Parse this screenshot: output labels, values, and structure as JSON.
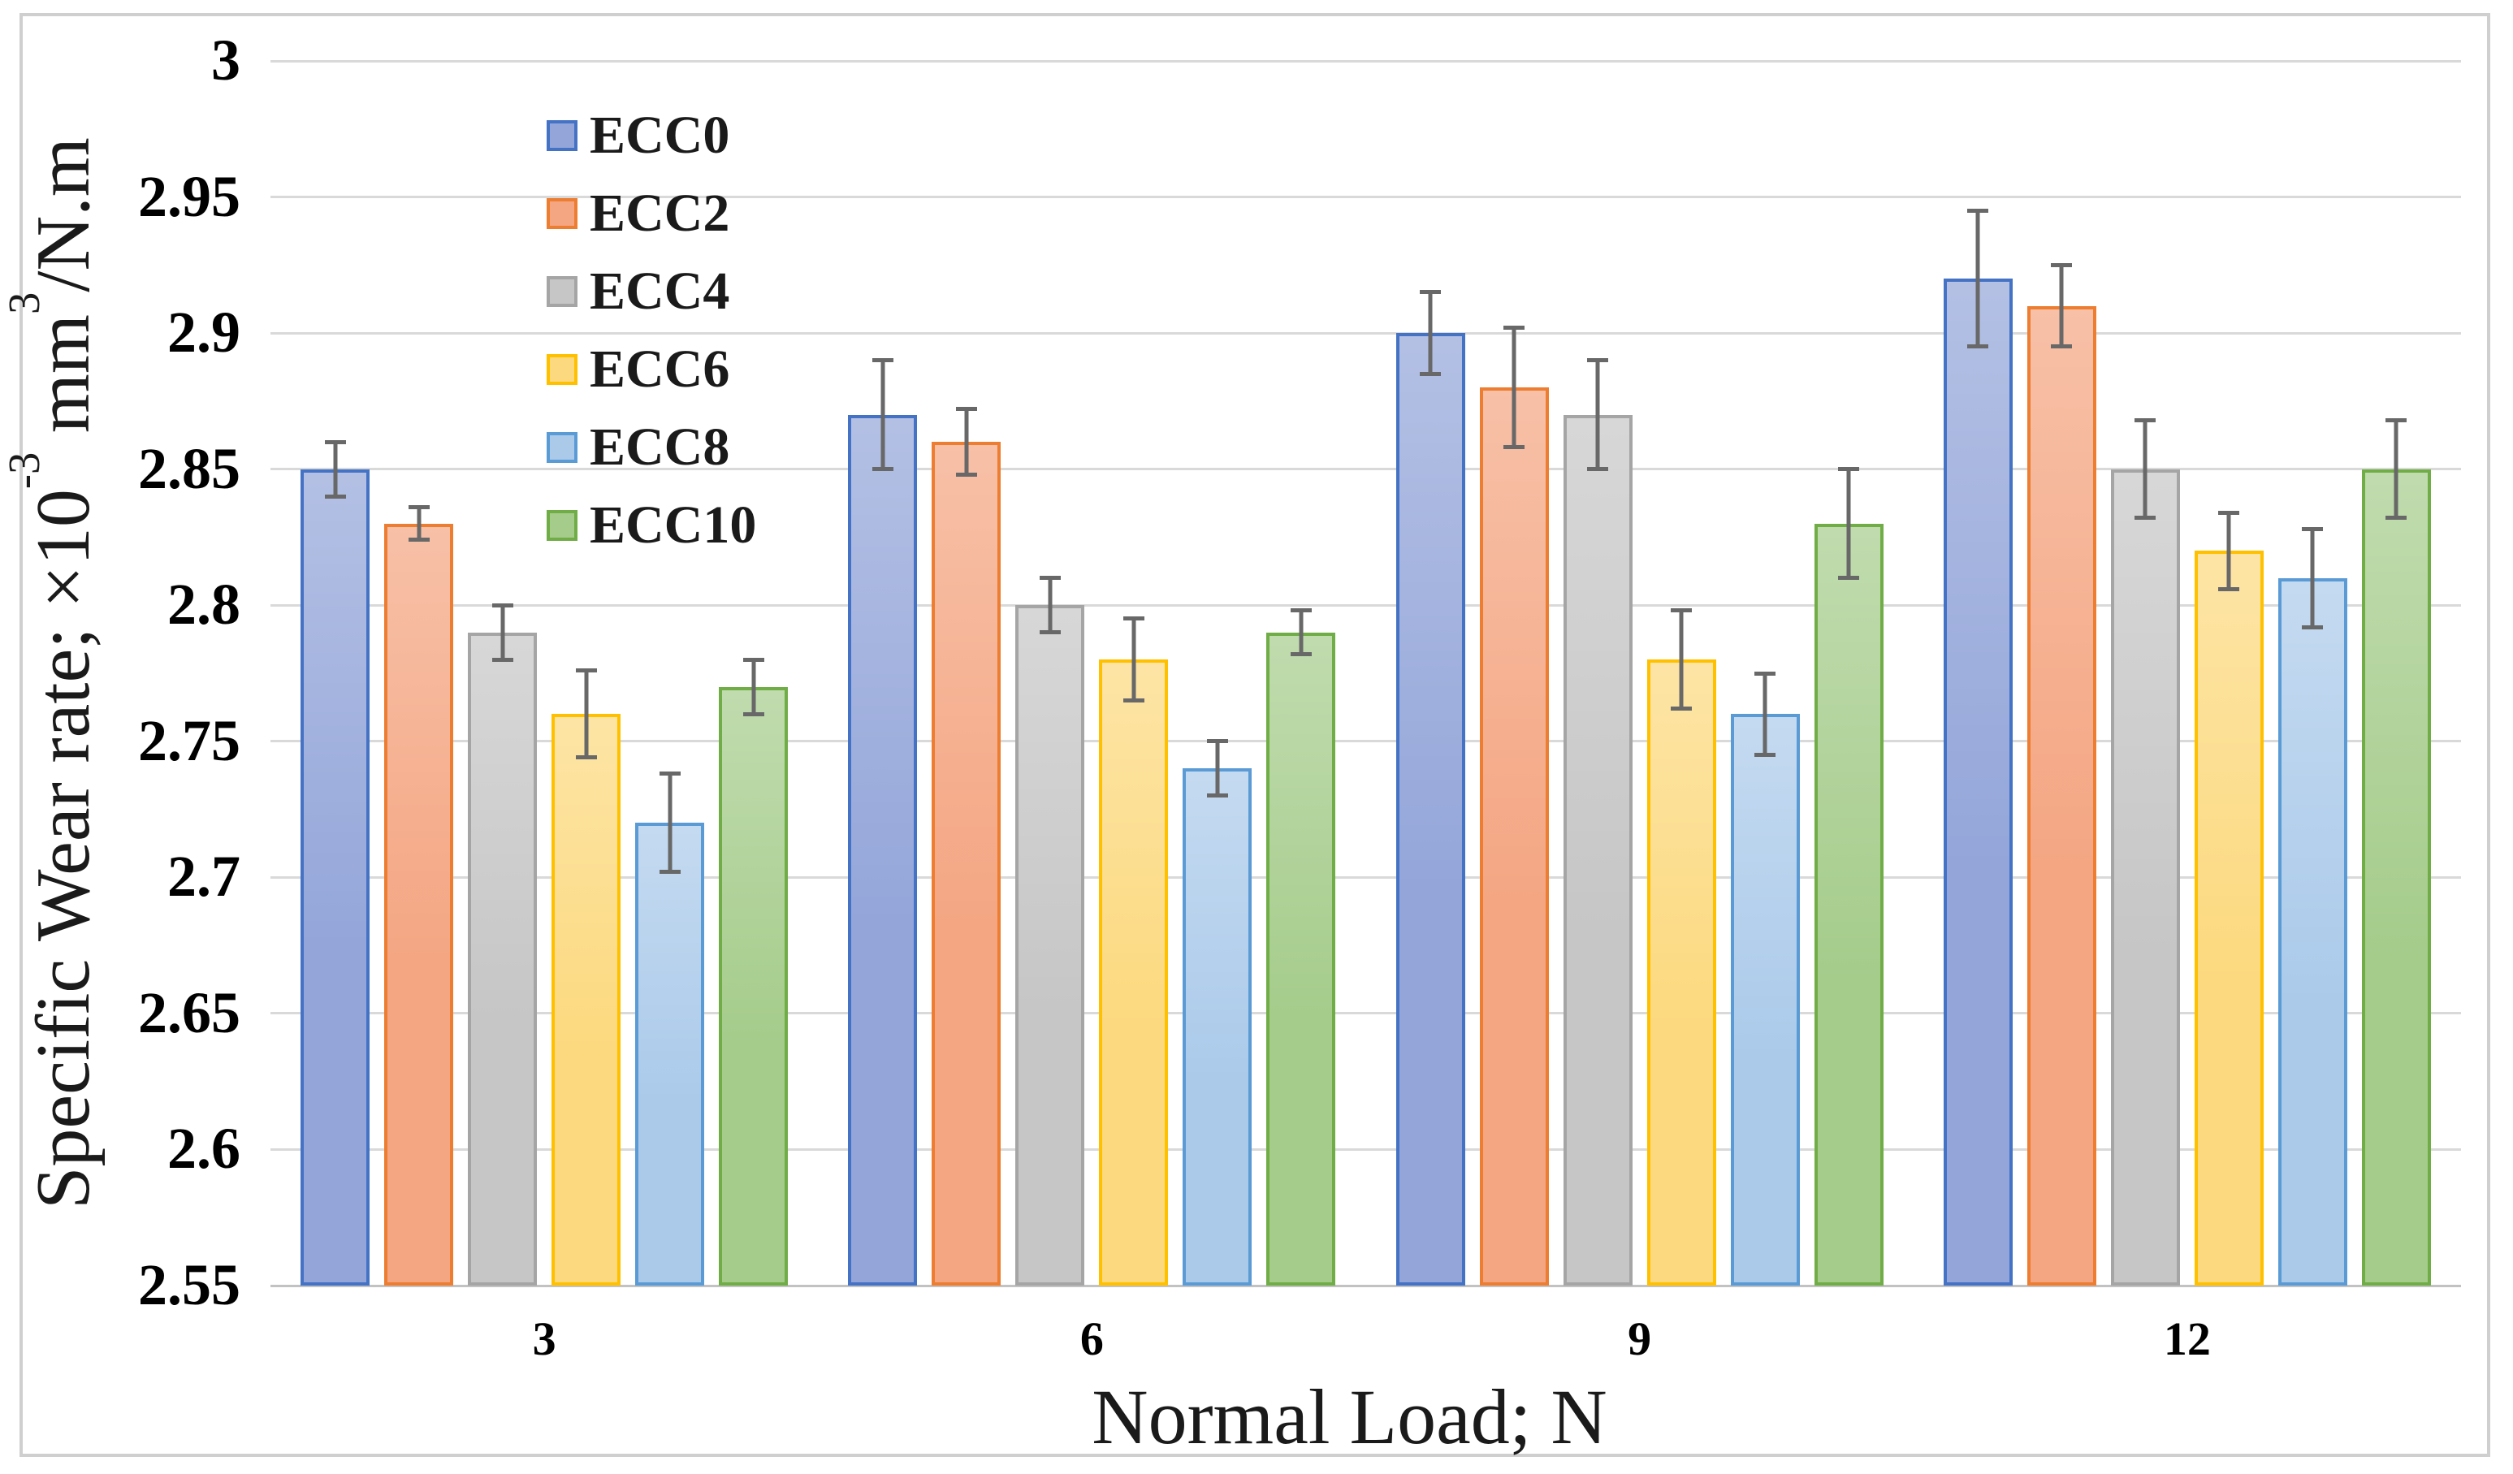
{
  "chart_data": {
    "type": "bar",
    "title": "",
    "xlabel": "Normal Load; N",
    "ylabel": "Specific Wear rate; ×10⁻³ mm³/N.m",
    "ylabel_rich": [
      {
        "kind": "text",
        "value": "Specific Wear rate; ×10"
      },
      {
        "kind": "sup",
        "value": "-3"
      },
      {
        "kind": "text",
        "value": " mm"
      },
      {
        "kind": "sup",
        "value": "3"
      },
      {
        "kind": "text",
        "value": "/N.m"
      }
    ],
    "categories": [
      "3",
      "6",
      "9",
      "12"
    ],
    "series": [
      {
        "name": "ECC0",
        "fill": "#93A5D9",
        "border": "#4472C4",
        "values": [
          2.85,
          2.87,
          2.9,
          2.92
        ],
        "errors": [
          0.01,
          0.02,
          0.015,
          0.025
        ]
      },
      {
        "name": "ECC2",
        "fill": "#F4A581",
        "border": "#ED7D31",
        "values": [
          2.83,
          2.86,
          2.88,
          2.91
        ],
        "errors": [
          0.006,
          0.012,
          0.022,
          0.015
        ]
      },
      {
        "name": "ECC4",
        "fill": "#C6C6C6",
        "border": "#A5A5A5",
        "values": [
          2.79,
          2.8,
          2.87,
          2.85
        ],
        "errors": [
          0.01,
          0.01,
          0.02,
          0.018
        ]
      },
      {
        "name": "ECC6",
        "fill": "#FCD97E",
        "border": "#FFC000",
        "values": [
          2.76,
          2.78,
          2.78,
          2.82
        ],
        "errors": [
          0.016,
          0.015,
          0.018,
          0.014
        ]
      },
      {
        "name": "ECC8",
        "fill": "#ABCAEA",
        "border": "#5B9BD5",
        "values": [
          2.72,
          2.74,
          2.76,
          2.81
        ],
        "errors": [
          0.018,
          0.01,
          0.015,
          0.018
        ]
      },
      {
        "name": "ECC10",
        "fill": "#A5CC8B",
        "border": "#70AD47",
        "values": [
          2.77,
          2.79,
          2.83,
          2.85
        ],
        "errors": [
          0.01,
          0.008,
          0.02,
          0.018
        ]
      }
    ],
    "ylim": [
      2.55,
      3.0
    ],
    "ytick_step": 0.05,
    "yticks": [
      "3",
      "2.95",
      "2.9",
      "2.85",
      "2.8",
      "2.75",
      "2.7",
      "2.65",
      "2.6",
      "2.55"
    ],
    "grid": true,
    "legend_position": "upper-left-inside",
    "colors": {
      "gridline": "#d9d9d9",
      "axisline": "#c2c2c2",
      "errorbar": "#686868",
      "frame": "#cfcfcf",
      "text": "#000000",
      "background": "#ffffff"
    }
  }
}
